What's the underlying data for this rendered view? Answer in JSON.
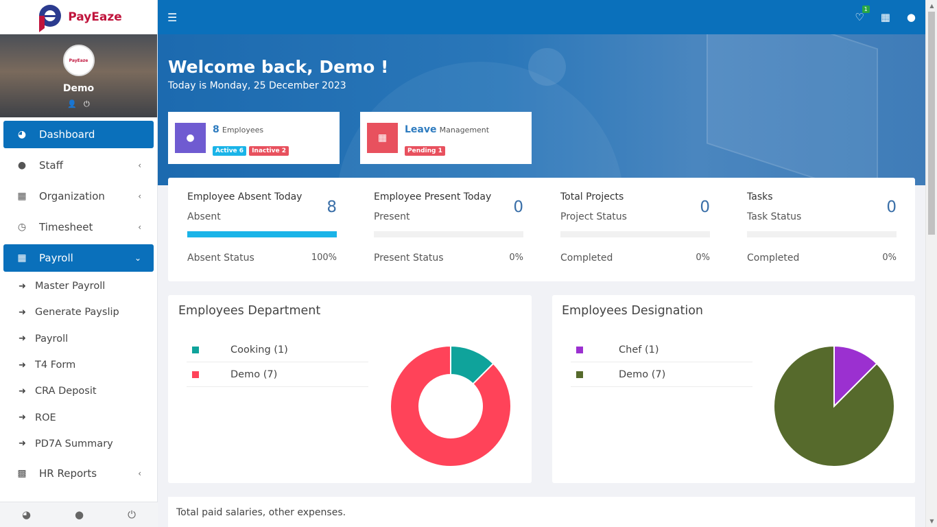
{
  "app": {
    "logo_text": "PayEaze"
  },
  "profile": {
    "name": "Demo",
    "avatar_text": "PayEaze"
  },
  "sidebar": {
    "items": [
      {
        "label": "Dashboard",
        "icon": "dashboard-icon"
      },
      {
        "label": "Staff",
        "icon": "user-icon"
      },
      {
        "label": "Organization",
        "icon": "building-icon"
      },
      {
        "label": "Timesheet",
        "icon": "clock-icon"
      },
      {
        "label": "Payroll",
        "icon": "calculator-icon"
      }
    ],
    "payroll_sub": [
      {
        "label": "Master Payroll"
      },
      {
        "label": "Generate Payslip"
      },
      {
        "label": "Payroll"
      },
      {
        "label": "T4 Form"
      },
      {
        "label": "CRA Deposit"
      },
      {
        "label": "ROE"
      },
      {
        "label": "PD7A Summary"
      }
    ],
    "hr_reports": {
      "label": "HR Reports",
      "icon": "bar-chart-icon"
    }
  },
  "topbar": {
    "notification_count": "1"
  },
  "hero": {
    "welcome": "Welcome back, Demo !",
    "today": "Today is Monday, 25 December 2023"
  },
  "cards": {
    "employees": {
      "count": "8",
      "label": "Employees",
      "active": "Active 6",
      "inactive": "Inactive 2",
      "color": "#6f5bd1"
    },
    "leave": {
      "title": "Leave",
      "label": "Management",
      "pending": "Pending 1",
      "color": "#e8515e"
    }
  },
  "stats": [
    {
      "title": "Employee Absent Today",
      "sub": "Absent",
      "value": "8",
      "foot": "Absent Status",
      "pct": "100%",
      "fill": 1.0
    },
    {
      "title": "Employee Present Today",
      "sub": "Present",
      "value": "0",
      "foot": "Present Status",
      "pct": "0%",
      "fill": 0
    },
    {
      "title": "Total Projects",
      "sub": "Project Status",
      "value": "0",
      "foot": "Completed",
      "pct": "0%",
      "fill": 0
    },
    {
      "title": "Tasks",
      "sub": "Task Status",
      "value": "0",
      "foot": "Completed",
      "pct": "0%",
      "fill": 0
    }
  ],
  "department": {
    "title": "Employees Department",
    "items": [
      {
        "label": "Cooking (1)",
        "value": 1,
        "color": "#0fa39b"
      },
      {
        "label": "Demo (7)",
        "value": 7,
        "color": "#ff4359"
      }
    ]
  },
  "designation": {
    "title": "Employees Designation",
    "items": [
      {
        "label": "Chef (1)",
        "value": 1,
        "color": "#9b30d0"
      },
      {
        "label": "Demo (7)",
        "value": 7,
        "color": "#566a2c"
      }
    ]
  },
  "bottom": {
    "text": "Total paid salaries, other expenses."
  }
}
